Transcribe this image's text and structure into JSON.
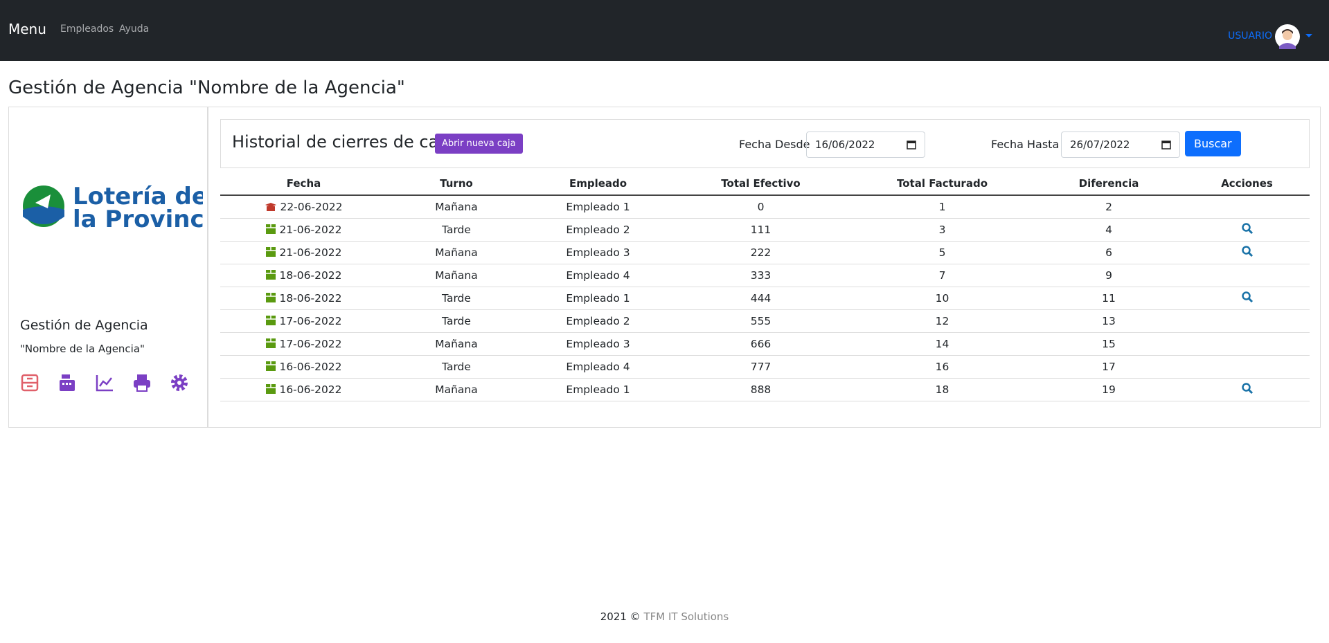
{
  "navbar": {
    "brand": "Menu",
    "links": [
      "Empleados",
      "Ayuda"
    ],
    "user": "USUARIO"
  },
  "page_title": "Gestión de Agencia \"Nombre de la Agencia\"",
  "sidebar": {
    "logo_lines": [
      "Lotería de",
      "la Provincia"
    ],
    "title": "Gestión de Agencia",
    "subtitle": "\"Nombre de la Agencia\""
  },
  "panel": {
    "title": "Historial de cierres de caja",
    "button": "Abrir nueva caja",
    "from_label": "Fecha Desde",
    "from_value": "16/06/2022",
    "to_label": "Fecha Hasta",
    "to_value": "26/07/2022",
    "search": "Buscar"
  },
  "table": {
    "columns": [
      "Fecha",
      "Turno",
      "Empleado",
      "Total Efectivo",
      "Total Facturado",
      "Diferencia",
      "Acciones"
    ],
    "rows": [
      [
        "22-06-2022",
        "Mañana",
        "Empleado 1",
        "0",
        "1",
        "2"
      ],
      [
        "21-06-2022",
        "Tarde",
        "Empleado 2",
        "111",
        "3",
        "4"
      ],
      [
        "21-06-2022",
        "Mañana",
        "Empleado 3",
        "222",
        "5",
        "6"
      ],
      [
        "18-06-2022",
        "Mañana",
        "Empleado 4",
        "333",
        "7",
        "9"
      ],
      [
        "18-06-2022",
        "Tarde",
        "Empleado 1",
        "444",
        "10",
        "11"
      ],
      [
        "17-06-2022",
        "Tarde",
        "Empleado 2",
        "555",
        "12",
        "13"
      ],
      [
        "17-06-2022",
        "Mañana",
        "Empleado 3",
        "666",
        "14",
        "15"
      ],
      [
        "16-06-2022",
        "Tarde",
        "Empleado 4",
        "777",
        "16",
        "17"
      ],
      [
        "16-06-2022",
        "Mañana",
        "Empleado 1",
        "888",
        "18",
        "19"
      ]
    ]
  },
  "footer": {
    "year": "2021 ©",
    "company": "TFM IT Solutions"
  }
}
